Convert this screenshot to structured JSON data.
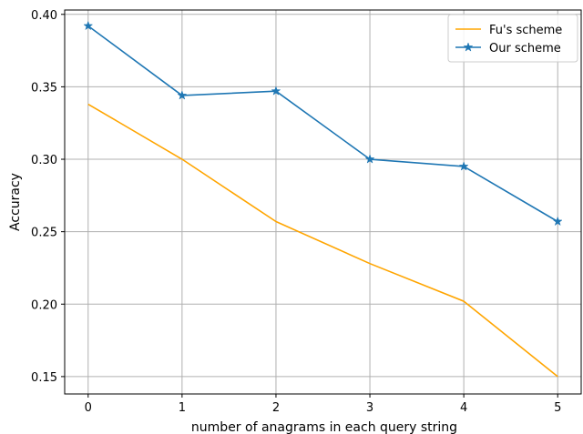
{
  "chart_data": {
    "type": "line",
    "title": "",
    "xlabel": "number of anagrams in each query string",
    "ylabel": "Accuracy",
    "x": [
      0,
      1,
      2,
      3,
      4,
      5
    ],
    "xlim": [
      -0.25,
      5.25
    ],
    "ylim": [
      0.138,
      0.403
    ],
    "xticks": [
      "0",
      "1",
      "2",
      "3",
      "4",
      "5"
    ],
    "yticks": [
      "0.15",
      "0.20",
      "0.25",
      "0.30",
      "0.35",
      "0.40"
    ],
    "grid": true,
    "legend_position": "top-right",
    "series": [
      {
        "name": "Fu's scheme",
        "values": [
          0.338,
          0.3,
          0.257,
          0.228,
          0.202,
          0.15
        ],
        "color": "#ffa500",
        "marker": "none"
      },
      {
        "name": "Our scheme",
        "values": [
          0.392,
          0.344,
          0.347,
          0.3,
          0.295,
          0.257
        ],
        "color": "#1f77b4",
        "marker": "star"
      }
    ]
  }
}
